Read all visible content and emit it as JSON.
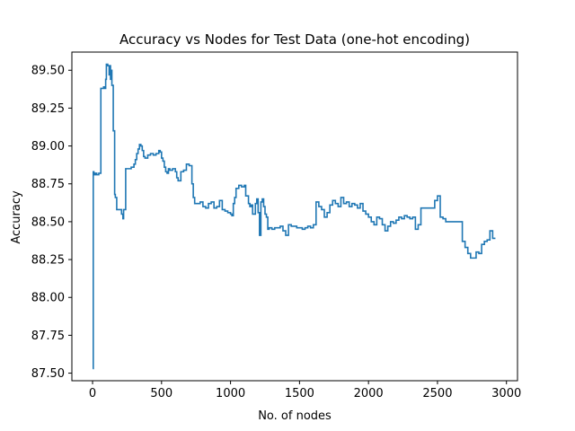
{
  "chart_data": {
    "type": "line",
    "title": "Accuracy vs Nodes for Test Data (one-hot encoding)",
    "xlabel": "No. of nodes",
    "ylabel": "Accuracy",
    "xlim": [
      -150,
      3080
    ],
    "ylim": [
      87.45,
      89.62
    ],
    "xticks": [
      0,
      500,
      1000,
      1500,
      2000,
      2500,
      3000
    ],
    "xtick_labels": [
      "0",
      "500",
      "1000",
      "1500",
      "2000",
      "2500",
      "3000"
    ],
    "yticks": [
      87.5,
      87.75,
      88.0,
      88.25,
      88.5,
      88.75,
      89.0,
      89.25,
      89.5
    ],
    "ytick_labels": [
      "87.50",
      "87.75",
      "88.00",
      "88.25",
      "88.50",
      "88.75",
      "89.00",
      "89.25",
      "89.50"
    ],
    "grid": false,
    "legend": "none",
    "series": [
      {
        "color": "#1f77b4",
        "step": true,
        "x": [
          1,
          5,
          10,
          20,
          30,
          45,
          60,
          70,
          80,
          90,
          95,
          100,
          110,
          120,
          125,
          130,
          135,
          140,
          150,
          160,
          165,
          175,
          200,
          210,
          220,
          225,
          240,
          260,
          280,
          300,
          310,
          320,
          330,
          340,
          350,
          360,
          370,
          380,
          400,
          420,
          440,
          460,
          480,
          490,
          500,
          510,
          520,
          530,
          540,
          550,
          560,
          580,
          600,
          610,
          620,
          640,
          660,
          680,
          700,
          720,
          730,
          740,
          760,
          780,
          800,
          820,
          840,
          860,
          880,
          900,
          920,
          940,
          960,
          980,
          1000,
          1010,
          1020,
          1030,
          1040,
          1060,
          1080,
          1100,
          1110,
          1130,
          1140,
          1150,
          1160,
          1180,
          1190,
          1200,
          1210,
          1220,
          1230,
          1240,
          1250,
          1260,
          1270,
          1280,
          1300,
          1320,
          1340,
          1360,
          1380,
          1400,
          1420,
          1440,
          1460,
          1480,
          1500,
          1520,
          1540,
          1560,
          1580,
          1600,
          1620,
          1640,
          1660,
          1680,
          1700,
          1720,
          1740,
          1760,
          1780,
          1800,
          1820,
          1840,
          1860,
          1880,
          1900,
          1920,
          1940,
          1960,
          1980,
          2000,
          2020,
          2040,
          2060,
          2080,
          2100,
          2120,
          2140,
          2160,
          2180,
          2200,
          2220,
          2240,
          2260,
          2280,
          2300,
          2320,
          2340,
          2360,
          2380,
          2400,
          2420,
          2440,
          2460,
          2480,
          2500,
          2520,
          2540,
          2560,
          2580,
          2600,
          2620,
          2640,
          2660,
          2680,
          2700,
          2720,
          2740,
          2760,
          2780,
          2800,
          2820,
          2840,
          2860,
          2880,
          2900,
          2920
        ],
        "y": [
          87.53,
          88.83,
          88.81,
          88.82,
          88.81,
          88.82,
          89.38,
          89.38,
          89.39,
          89.38,
          89.44,
          89.54,
          89.53,
          89.47,
          89.53,
          89.44,
          89.5,
          89.4,
          89.1,
          88.68,
          88.66,
          88.58,
          88.58,
          88.55,
          88.52,
          88.58,
          88.85,
          88.85,
          88.86,
          88.88,
          88.91,
          88.95,
          88.98,
          89.01,
          89.0,
          88.97,
          88.93,
          88.92,
          88.94,
          88.95,
          88.94,
          88.95,
          88.97,
          88.96,
          88.92,
          88.9,
          88.86,
          88.83,
          88.82,
          88.85,
          88.84,
          88.85,
          88.83,
          88.79,
          88.77,
          88.83,
          88.84,
          88.88,
          88.87,
          88.75,
          88.66,
          88.62,
          88.62,
          88.63,
          88.6,
          88.59,
          88.62,
          88.63,
          88.59,
          88.6,
          88.64,
          88.58,
          88.57,
          88.56,
          88.55,
          88.54,
          88.62,
          88.66,
          88.72,
          88.74,
          88.73,
          88.74,
          88.67,
          88.62,
          88.6,
          88.61,
          88.55,
          88.62,
          88.65,
          88.56,
          88.41,
          88.63,
          88.65,
          88.6,
          88.55,
          88.53,
          88.45,
          88.46,
          88.45,
          88.46,
          88.46,
          88.47,
          88.44,
          88.41,
          88.48,
          88.47,
          88.47,
          88.46,
          88.46,
          88.45,
          88.46,
          88.47,
          88.46,
          88.48,
          88.63,
          88.6,
          88.58,
          88.53,
          88.56,
          88.61,
          88.64,
          88.62,
          88.6,
          88.66,
          88.62,
          88.63,
          88.6,
          88.62,
          88.61,
          88.59,
          88.62,
          88.57,
          88.55,
          88.53,
          88.5,
          88.48,
          88.53,
          88.52,
          88.48,
          88.44,
          88.47,
          88.5,
          88.49,
          88.51,
          88.53,
          88.52,
          88.54,
          88.53,
          88.52,
          88.53,
          88.45,
          88.48,
          88.59,
          88.59,
          88.59,
          88.59,
          88.59,
          88.64,
          88.67,
          88.53,
          88.52,
          88.5,
          88.5,
          88.5,
          88.5,
          88.5,
          88.5,
          88.37,
          88.33,
          88.29,
          88.26,
          88.26,
          88.3,
          88.29,
          88.35,
          88.37,
          88.38,
          88.44,
          88.39,
          88.39
        ]
      }
    ]
  }
}
